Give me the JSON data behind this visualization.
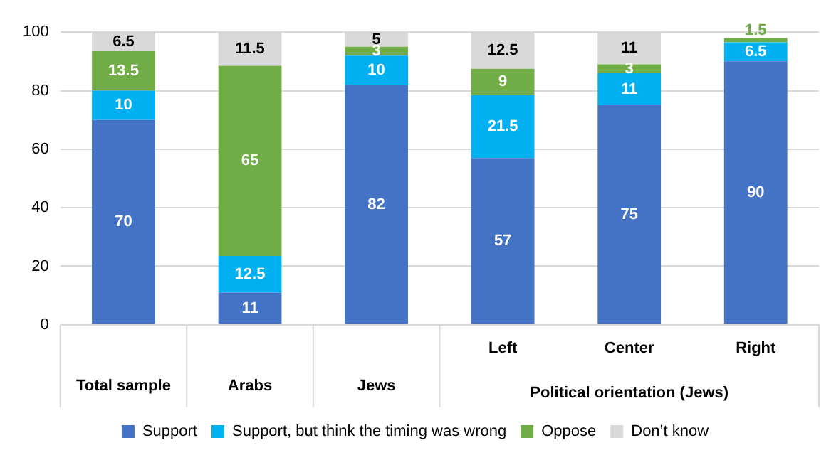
{
  "chart_data": {
    "type": "bar",
    "stacked": true,
    "categories": [
      "Total sample",
      "Arabs",
      "Jews",
      "Left",
      "Center",
      "Right"
    ],
    "series": [
      {
        "name": "Support",
        "color": "#4472c4",
        "values": [
          70,
          11,
          82,
          57,
          75,
          90
        ]
      },
      {
        "name": "Support, but think the timing was wrong",
        "color": "#00b0f0",
        "values": [
          10,
          12.5,
          10,
          21.5,
          11,
          6.5
        ]
      },
      {
        "name": "Oppose",
        "color": "#70ad47",
        "values": [
          13.5,
          65,
          3,
          9,
          3,
          1.5
        ]
      },
      {
        "name": "Don’t know",
        "color": "#d9d9d9",
        "values": [
          6.5,
          11.5,
          5,
          12.5,
          11,
          null
        ]
      }
    ],
    "ylim": [
      0,
      100
    ],
    "yticks": [
      0,
      20,
      40,
      60,
      80,
      100
    ],
    "grid": "y",
    "legend": "bottom",
    "data_labels": true,
    "annotations": [
      "Political orientation (Jews)"
    ]
  }
}
